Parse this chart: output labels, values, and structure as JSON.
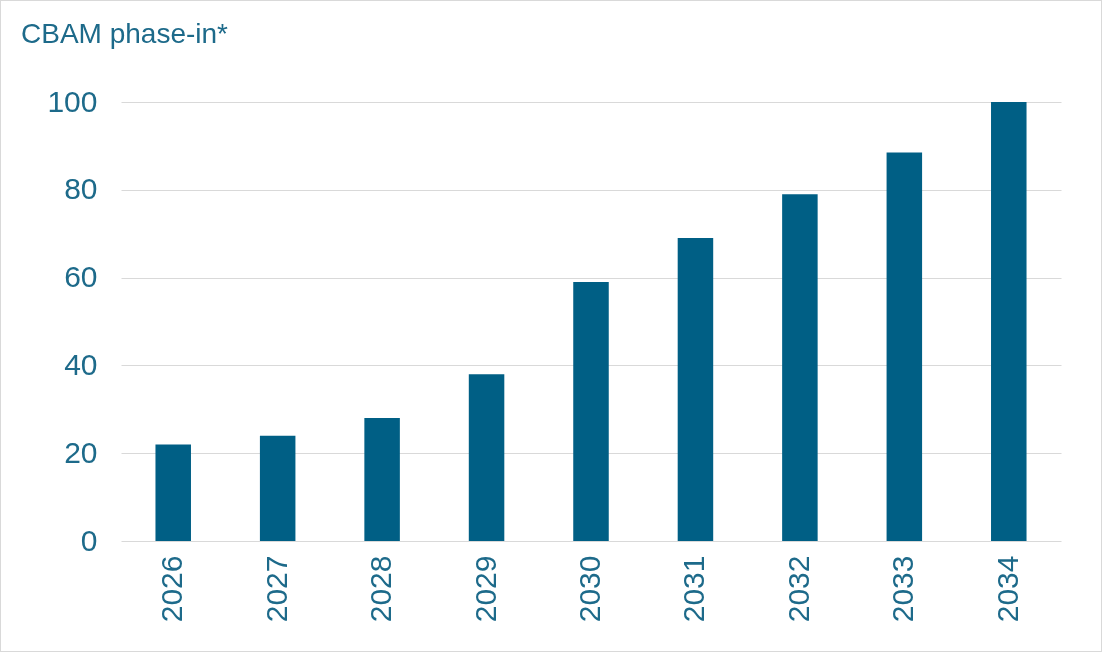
{
  "chart_data": {
    "type": "bar",
    "title": "CBAM phase-in*",
    "categories": [
      "2026",
      "2027",
      "2028",
      "2029",
      "2030",
      "2031",
      "2032",
      "2033",
      "2034"
    ],
    "values": [
      22,
      24,
      28,
      38,
      59,
      69,
      79,
      88.5,
      100
    ],
    "color": "#005f85",
    "ylim": [
      0,
      100
    ],
    "yticks": [
      0,
      20,
      40,
      60,
      80,
      100
    ],
    "grid": "y"
  }
}
